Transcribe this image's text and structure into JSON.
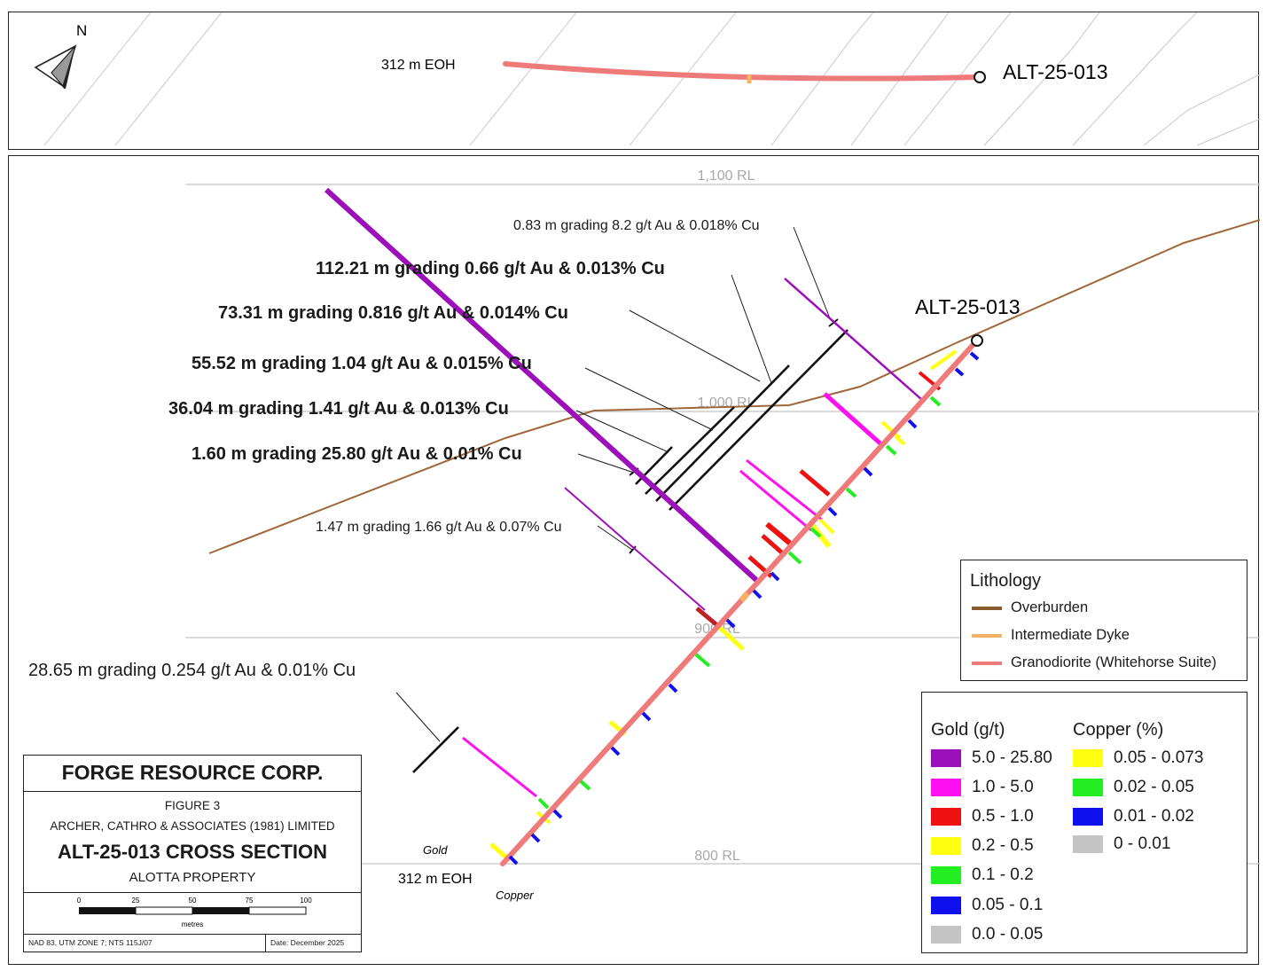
{
  "plan": {
    "north_label": "N",
    "eoh_label": "312 m EOH",
    "hole_label": "ALT-25-013"
  },
  "section": {
    "rl_labels": [
      "1,100 RL",
      "1,000 RL",
      "900 RL",
      "800 RL"
    ],
    "hole_label": "ALT-25-013",
    "eoh_label": "312 m EOH",
    "gold_side_label": "Gold",
    "copper_side_label": "Copper",
    "intercepts": [
      {
        "text": "0.83 m grading 8.2 g/t Au & 0.018% Cu",
        "bold": false
      },
      {
        "text": "112.21 m grading 0.66 g/t Au & 0.013% Cu",
        "bold": true
      },
      {
        "text": "73.31 m grading 0.816 g/t Au & 0.014% Cu",
        "bold": true
      },
      {
        "text": "55.52 m grading 1.04 g/t Au & 0.015% Cu",
        "bold": true
      },
      {
        "text": "36.04 m grading 1.41 g/t Au & 0.013% Cu",
        "bold": true
      },
      {
        "text": "1.60 m grading 25.80 g/t Au & 0.01% Cu",
        "bold": true
      },
      {
        "text": "1.47 m grading 1.66 g/t Au & 0.07% Cu",
        "bold": false
      },
      {
        "text": "28.65 m grading 0.254 g/t Au & 0.01% Cu",
        "bold": false
      }
    ]
  },
  "lithology_legend": {
    "title": "Lithology",
    "items": [
      {
        "label": "Overburden",
        "color": "#8B5A2B"
      },
      {
        "label": "Intermediate Dyke",
        "color": "#F4B266"
      },
      {
        "label": "Granodiorite (Whitehorse Suite)",
        "color": "#EF7A7A"
      }
    ]
  },
  "grade_legend": {
    "gold_title": "Gold (g/t)",
    "copper_title": "Copper (%)",
    "gold": [
      {
        "label": "5.0 - 25.80",
        "color": "#9B10B8"
      },
      {
        "label": "1.0 - 5.0",
        "color": "#FF10F0"
      },
      {
        "label": "0.5 - 1.0",
        "color": "#EE1111"
      },
      {
        "label": "0.2 - 0.5",
        "color": "#FFFF10"
      },
      {
        "label": "0.1 - 0.2",
        "color": "#22EE22"
      },
      {
        "label": "0.05 - 0.1",
        "color": "#1010EE"
      },
      {
        "label": "0.0 - 0.05",
        "color": "#C4C4C4"
      }
    ],
    "copper": [
      {
        "label": "0.05 - 0.073",
        "color": "#FFFF10"
      },
      {
        "label": "0.02 - 0.05",
        "color": "#22EE22"
      },
      {
        "label": "0.01 - 0.02",
        "color": "#1010EE"
      },
      {
        "label": "0 - 0.01",
        "color": "#C4C4C4"
      }
    ]
  },
  "title_block": {
    "company": "FORGE RESOURCE CORP.",
    "figure": "FIGURE 3",
    "consultant": "ARCHER, CATHRO & ASSOCIATES (1981) LIMITED",
    "title": "ALT-25-013 CROSS SECTION",
    "property": "ALOTTA PROPERTY",
    "scale_ticks": [
      "0",
      "25",
      "50",
      "75",
      "100"
    ],
    "scale_unit": "metres",
    "projection": "NAD 83, UTM ZONE 7; NTS 115J/07",
    "date": "Date: December 2025"
  }
}
